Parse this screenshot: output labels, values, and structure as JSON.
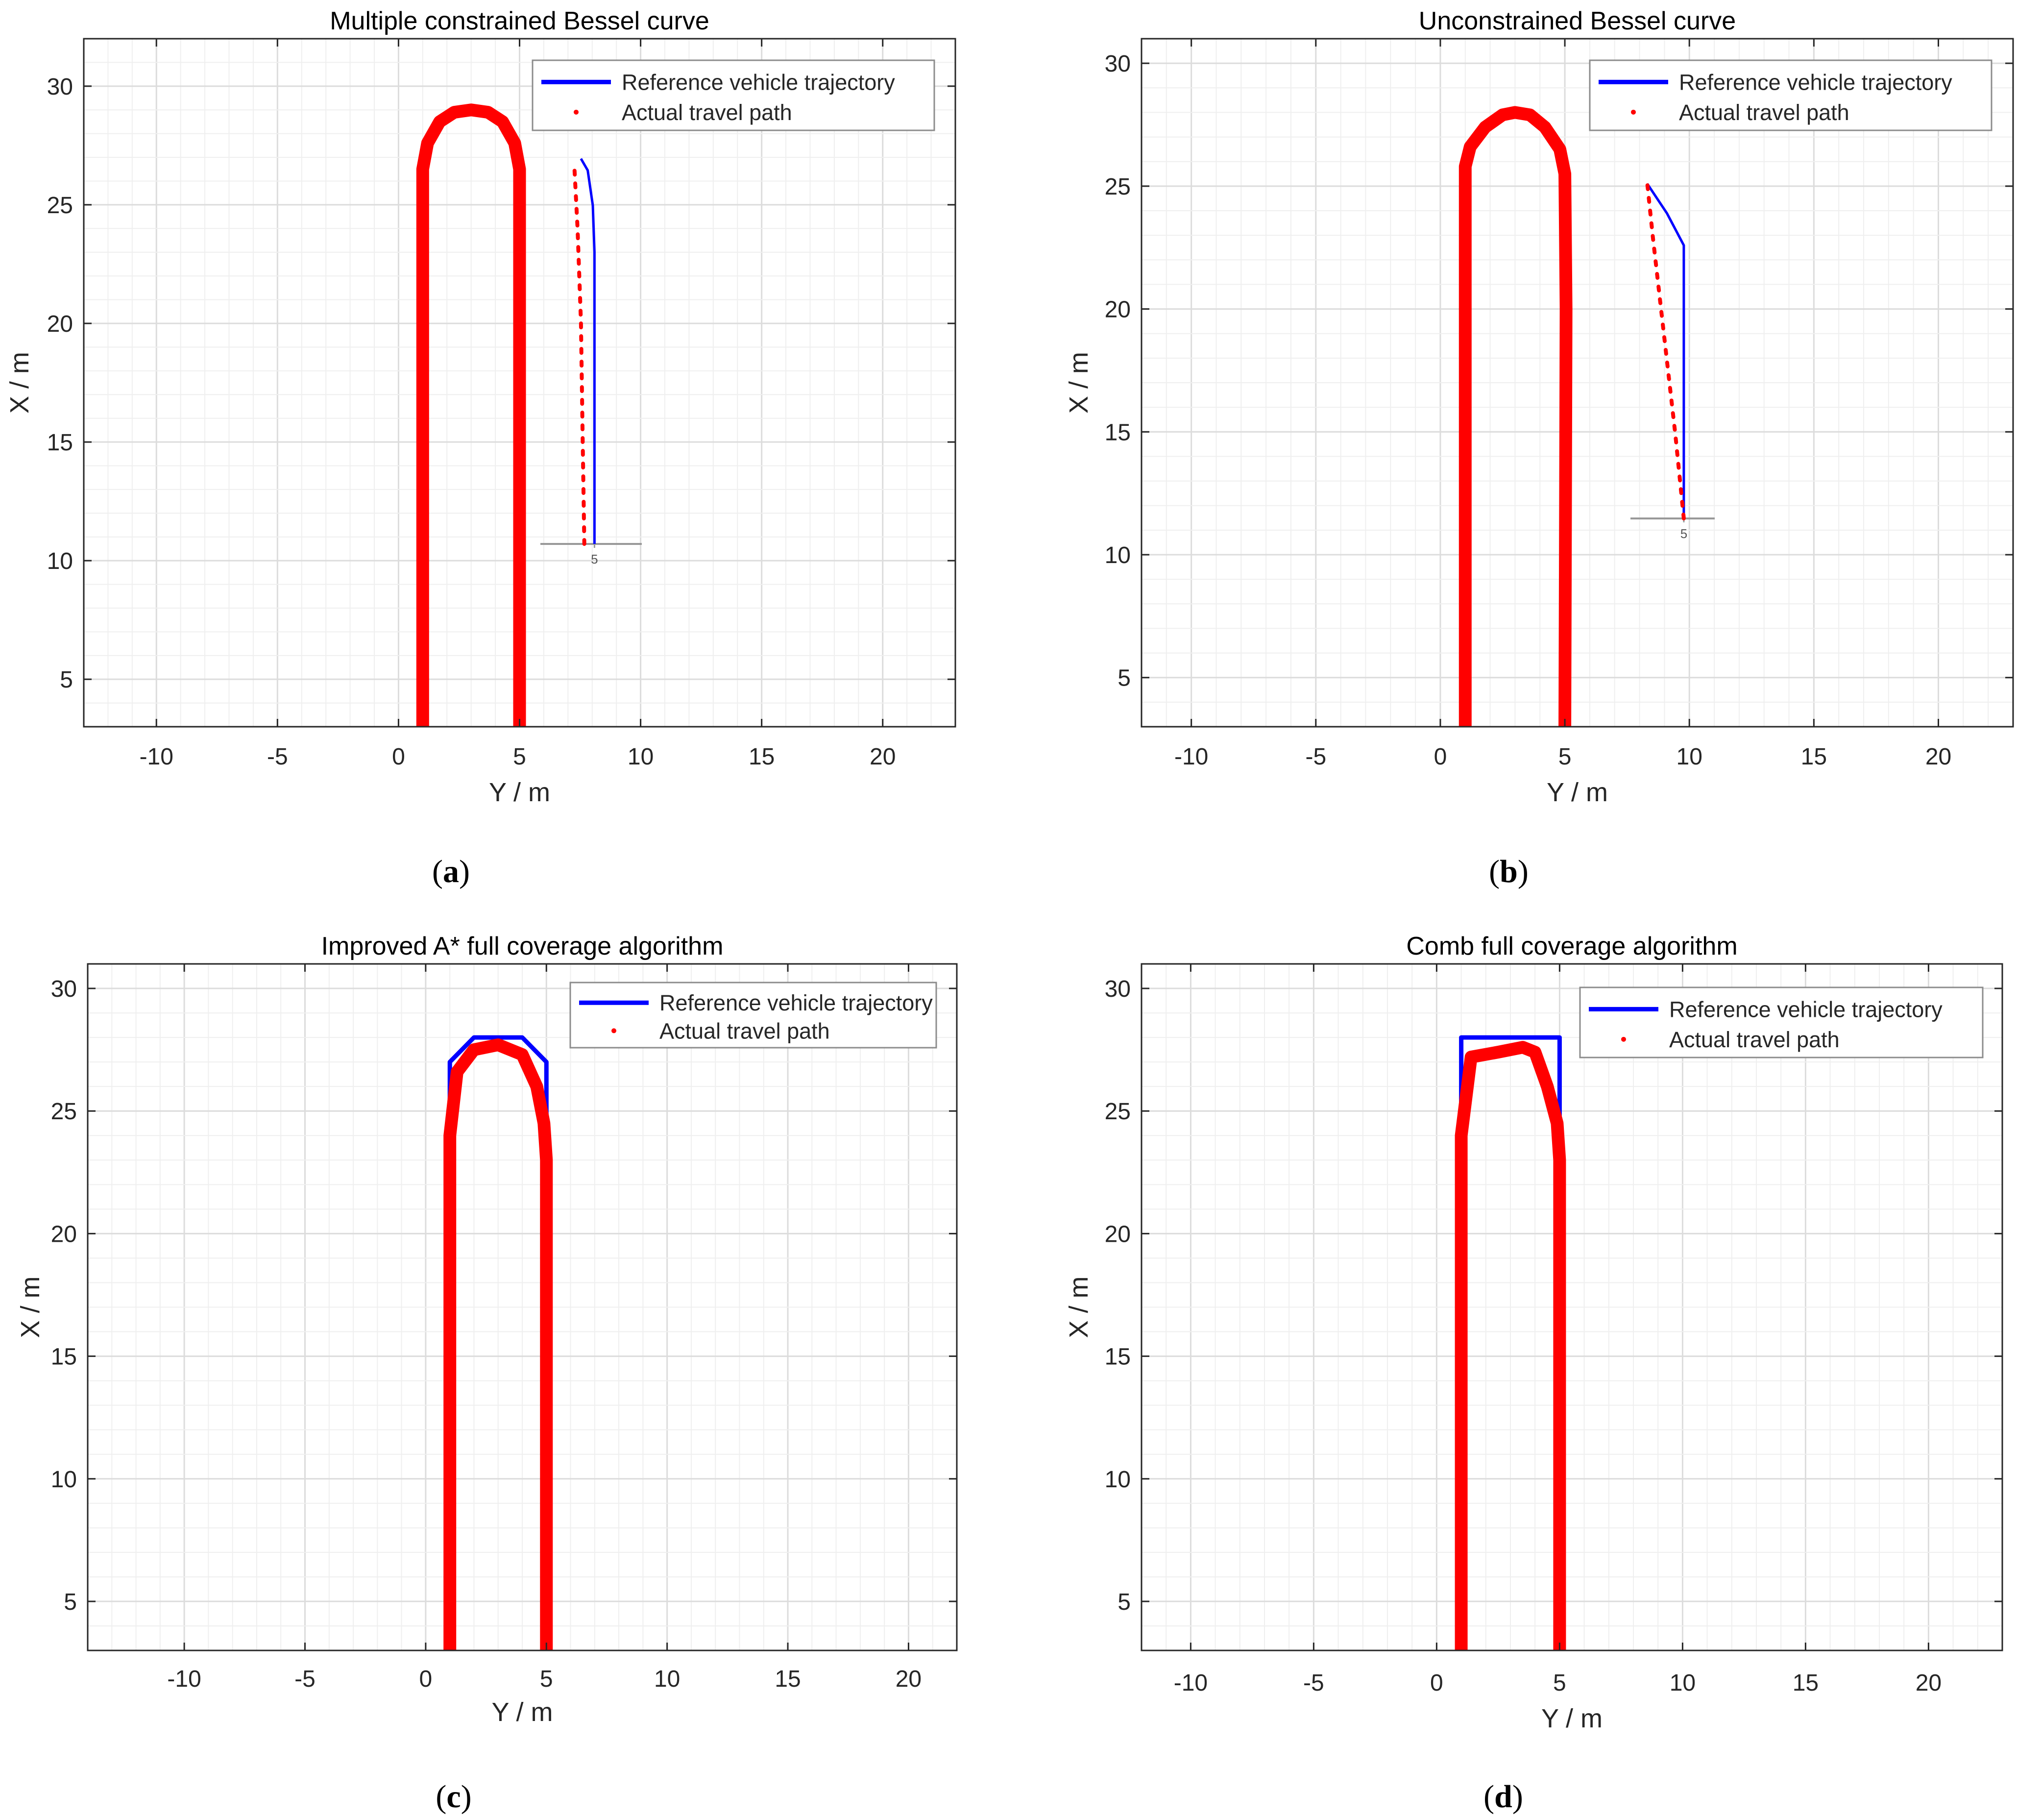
{
  "colors": {
    "reference": "#0000ff",
    "actual": "#ff0000",
    "grid_major": "#dcdcdc",
    "grid_minor": "#efefef",
    "axis": "#262626",
    "text": "#262626"
  },
  "chart_data": [
    {
      "type": "line",
      "panel_label": "a",
      "title": "Multiple constrained Bessel curve",
      "xlabel": "Y / m",
      "ylabel": "X / m",
      "xlim": [
        -13,
        23
      ],
      "ylim": [
        3,
        32
      ],
      "xticks": [
        -10,
        -5,
        0,
        5,
        10,
        15,
        20
      ],
      "yticks": [
        5,
        10,
        15,
        20,
        25,
        30
      ],
      "grid": "on (major and minor)",
      "legend": {
        "placement": "top-right",
        "entries": [
          "Reference vehicle trajectory",
          "Actual travel path"
        ]
      },
      "series": [
        {
          "name": "Reference vehicle trajectory",
          "style": "solid",
          "x": [
            1,
            1,
            1,
            1,
            1.2,
            1.7,
            2.3,
            3,
            3.7,
            4.3,
            4.8,
            5,
            5,
            5,
            5
          ],
          "y": [
            3,
            20,
            25,
            26.5,
            27.6,
            28.5,
            28.9,
            29,
            28.9,
            28.5,
            27.6,
            26.5,
            25,
            20,
            3
          ]
        },
        {
          "name": "Actual travel path",
          "style": "dotted",
          "x": [
            1,
            1,
            1,
            1,
            1.2,
            1.7,
            2.3,
            3,
            3.7,
            4.3,
            4.8,
            5,
            5,
            5,
            5
          ],
          "y": [
            3,
            20,
            25,
            26.5,
            27.6,
            28.5,
            28.9,
            29,
            28.9,
            28.5,
            27.6,
            26.5,
            25,
            20,
            3
          ]
        }
      ],
      "inset": {
        "tick_label": "5",
        "reference_x": [
          8.6,
          8.6,
          8.55,
          8.4,
          8.2
        ],
        "reference_y": [
          10.5,
          23,
          25,
          26.5,
          27
        ],
        "actual_x": [
          8.3,
          8.25,
          8.2,
          8.1,
          8.0
        ],
        "actual_y": [
          10.5,
          15,
          20,
          24,
          26.8
        ]
      }
    },
    {
      "type": "line",
      "panel_label": "b",
      "title": "Unconstrained Bessel curve",
      "xlabel": "Y / m",
      "ylabel": "X / m",
      "xlim": [
        -12,
        23
      ],
      "ylim": [
        3,
        31
      ],
      "xticks": [
        -10,
        -5,
        0,
        5,
        10,
        15,
        20
      ],
      "yticks": [
        5,
        10,
        15,
        20,
        25,
        30
      ],
      "grid": "on (major and minor)",
      "legend": {
        "placement": "top-right",
        "entries": [
          "Reference vehicle trajectory",
          "Actual travel path"
        ]
      },
      "series": [
        {
          "name": "Reference vehicle trajectory",
          "style": "solid",
          "x": [
            1,
            1,
            1,
            1.2,
            1.8,
            2.5,
            3,
            3.6,
            4.2,
            4.8,
            5,
            5.05,
            5
          ],
          "y": [
            3,
            20,
            25.8,
            26.6,
            27.4,
            27.9,
            28,
            27.9,
            27.4,
            26.5,
            25.5,
            20,
            3
          ]
        },
        {
          "name": "Actual travel path",
          "style": "dotted",
          "x": [
            1,
            1,
            1,
            1.2,
            1.8,
            2.5,
            3,
            3.6,
            4.2,
            4.8,
            5,
            5.05,
            5
          ],
          "y": [
            3,
            20,
            25.8,
            26.6,
            27.4,
            27.9,
            28,
            27.9,
            27.4,
            26.5,
            25.5,
            20,
            3
          ]
        }
      ],
      "inset": {
        "tick_label": "5",
        "reference_x": [
          9.9,
          9.9,
          9.3,
          8.6
        ],
        "reference_y": [
          11.6,
          22.7,
          24,
          25.2
        ],
        "actual_x": [
          9.9,
          9.6,
          9.2,
          8.8,
          8.6
        ],
        "actual_y": [
          11.6,
          15,
          19,
          23,
          25.2
        ]
      }
    },
    {
      "type": "line",
      "panel_label": "c",
      "title": "Improved A* full coverage algorithm",
      "xlabel": "Y / m",
      "ylabel": "X / m",
      "xlim": [
        -14,
        22
      ],
      "ylim": [
        3,
        31
      ],
      "xticks": [
        -10,
        -5,
        0,
        5,
        10,
        15,
        20
      ],
      "yticks": [
        5,
        10,
        15,
        20,
        25,
        30
      ],
      "grid": "on (major and minor)",
      "legend": {
        "placement": "top-right",
        "entries": [
          "Reference vehicle trajectory",
          "Actual travel path"
        ]
      },
      "series": [
        {
          "name": "Reference vehicle trajectory",
          "style": "solid",
          "x": [
            1,
            1,
            2,
            4,
            5,
            5
          ],
          "y": [
            3,
            27,
            28,
            28,
            27,
            3
          ]
        },
        {
          "name": "Actual travel path",
          "style": "dotted",
          "x": [
            1,
            1,
            1.3,
            2,
            3,
            4,
            4.6,
            4.9,
            5,
            5
          ],
          "y": [
            3,
            24,
            26.6,
            27.5,
            27.7,
            27.3,
            26,
            24.5,
            23,
            3
          ]
        }
      ]
    },
    {
      "type": "line",
      "panel_label": "d",
      "title": "Comb full coverage algorithm",
      "xlabel": "Y / m",
      "ylabel": "X / m",
      "xlim": [
        -12,
        23
      ],
      "ylim": [
        3,
        31
      ],
      "xticks": [
        -10,
        -5,
        0,
        5,
        10,
        15,
        20
      ],
      "yticks": [
        5,
        10,
        15,
        20,
        25,
        30
      ],
      "grid": "on (major and minor)",
      "legend": {
        "placement": "top-right",
        "entries": [
          "Reference vehicle trajectory",
          "Actual travel path"
        ]
      },
      "series": [
        {
          "name": "Reference vehicle trajectory",
          "style": "solid",
          "x": [
            1,
            1,
            5,
            5
          ],
          "y": [
            3,
            28,
            28,
            3
          ]
        },
        {
          "name": "Actual travel path",
          "style": "dotted",
          "x": [
            1,
            1,
            1.4,
            2.5,
            3.5,
            4,
            4.5,
            4.9,
            5,
            5
          ],
          "y": [
            3,
            24,
            27.2,
            27.4,
            27.6,
            27.4,
            26,
            24.5,
            23,
            3
          ]
        }
      ]
    }
  ]
}
